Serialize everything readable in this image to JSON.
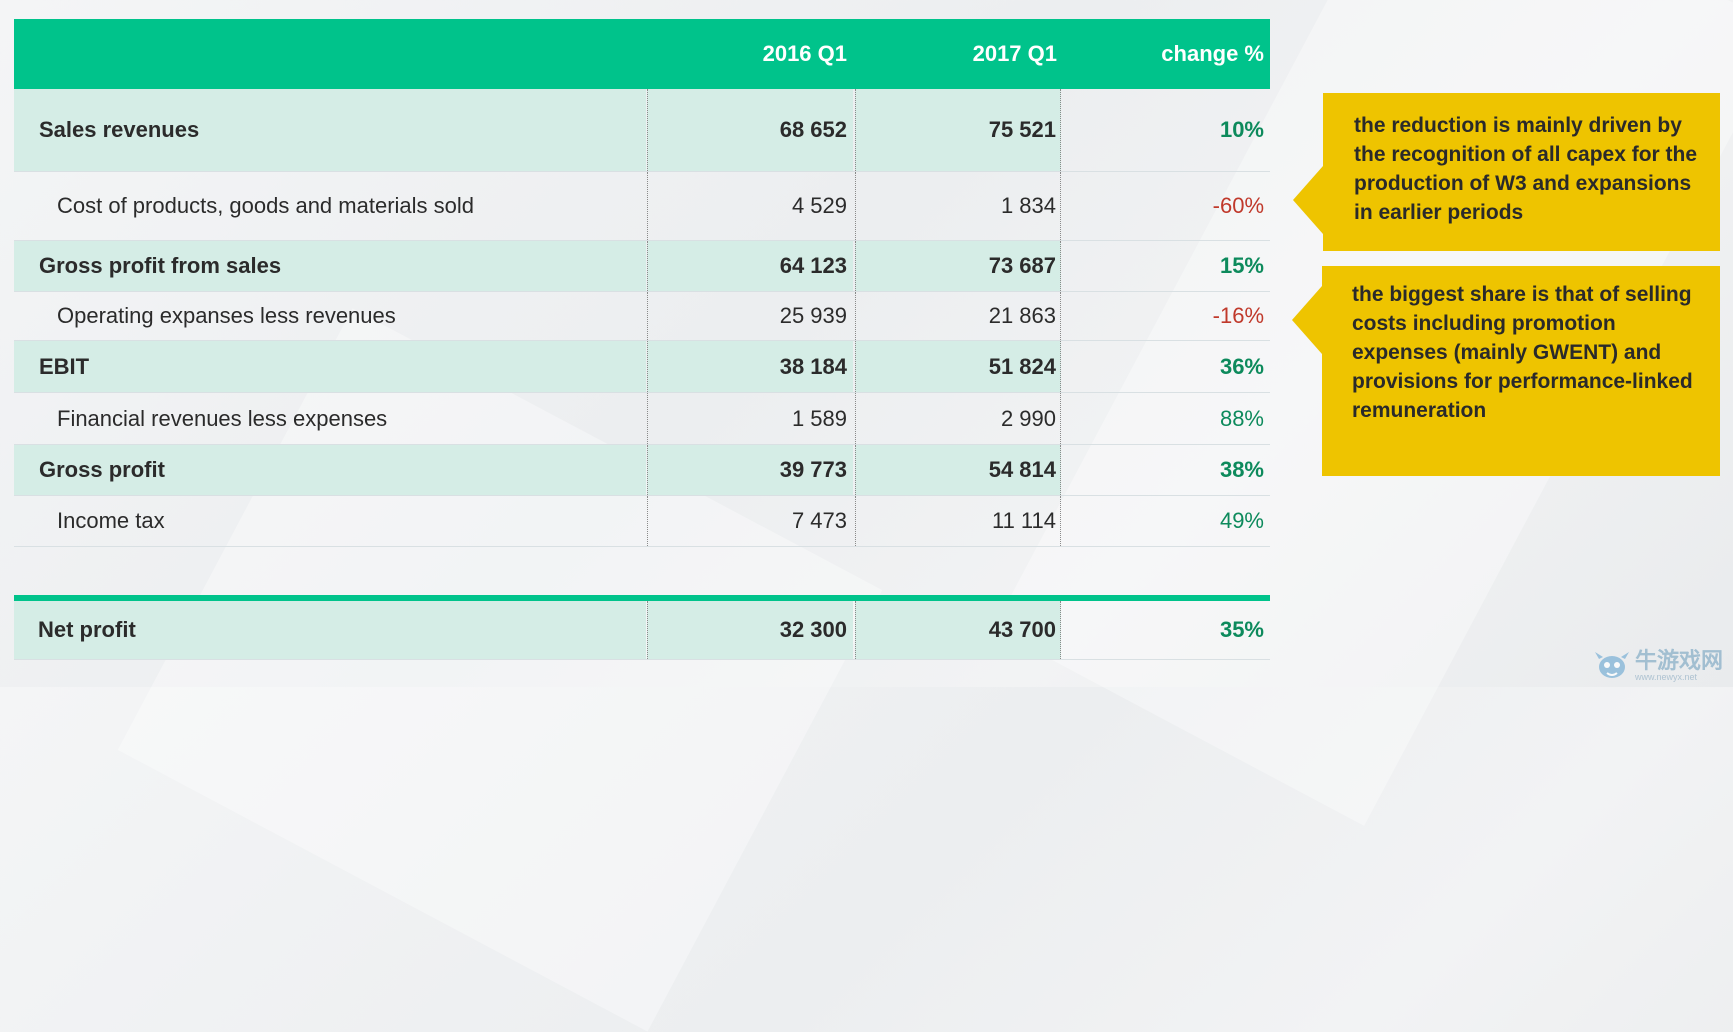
{
  "table": {
    "headers": [
      "",
      "2016 Q1",
      "2017 Q1",
      "change %"
    ],
    "rows": [
      {
        "label": "Sales revenues",
        "v2016": "68 652",
        "v2017": "75 521",
        "change": "10%"
      },
      {
        "label": "Cost of products, goods and materials sold",
        "v2016": "4 529",
        "v2017": "1 834",
        "change": "-60%"
      },
      {
        "label": "Gross profit from sales",
        "v2016": "64 123",
        "v2017": "73 687",
        "change": "15%"
      },
      {
        "label": "Operating expanses less revenues",
        "v2016": "25 939",
        "v2017": "21 863",
        "change": "-16%"
      },
      {
        "label": "EBIT",
        "v2016": "38 184",
        "v2017": "51 824",
        "change": "36%"
      },
      {
        "label": "Financial revenues less expenses",
        "v2016": "1 589",
        "v2017": "2 990",
        "change": "88%"
      },
      {
        "label": "Gross profit",
        "v2016": "39 773",
        "v2017": "54 814",
        "change": "38%"
      },
      {
        "label": "Income tax",
        "v2016": "7 473",
        "v2017": "11 114",
        "change": "49%"
      }
    ],
    "net": {
      "label": "Net profit",
      "v2016": "32 300",
      "v2017": "43 700",
      "change": "35%"
    }
  },
  "callouts": [
    "the reduction is mainly driven by the recognition of all capex for the production of W3 and expansions in earlier periods",
    "the biggest share is that of selling costs including promotion expenses (mainly GWENT) and provisions for performance-linked remuneration"
  ],
  "watermark": {
    "text": "牛游戏网",
    "url": "www.newyx.net"
  },
  "colors": {
    "header": "#00c38b",
    "callout": "#eec400",
    "positive": "#0d8a5c",
    "negative": "#c0392b"
  }
}
